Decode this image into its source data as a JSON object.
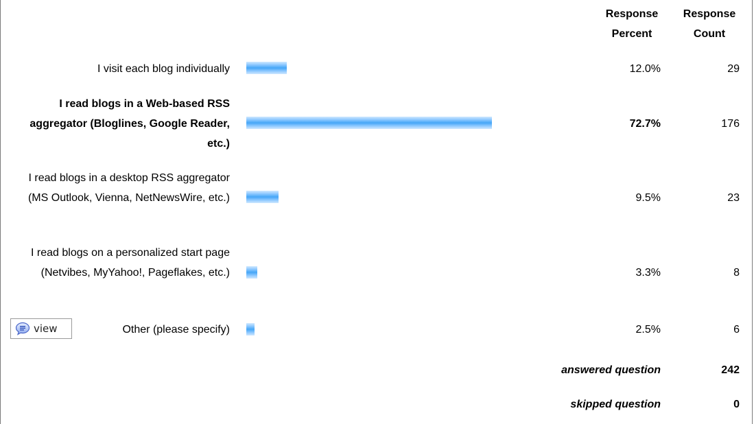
{
  "header": {
    "percent": "Response Percent",
    "count": "Response Count"
  },
  "rows": [
    {
      "label": "I visit each blog individually",
      "percent": "12.0%",
      "count": "29",
      "value": 12.0,
      "bold": false
    },
    {
      "label": "I read blogs in a Web-based RSS aggregator (Bloglines, Google Reader, etc.)",
      "percent": "72.7%",
      "count": "176",
      "value": 72.7,
      "bold": true
    },
    {
      "label": "I read blogs in a desktop RSS aggregator (MS Outlook, Vienna, NetNewsWire, etc.)",
      "percent": "9.5%",
      "count": "23",
      "value": 9.5,
      "bold": false
    },
    {
      "label": "I read blogs on a personalized start page (Netvibes, MyYahoo!, Pageflakes, etc.)",
      "percent": "3.3%",
      "count": "8",
      "value": 3.3,
      "bold": false
    },
    {
      "label": "Other (please specify)",
      "percent": "2.5%",
      "count": "6",
      "value": 2.5,
      "bold": false
    }
  ],
  "view_button": {
    "label": "view",
    "icon": "speech-bubble-icon"
  },
  "summary": {
    "answered_label": "answered question",
    "answered_value": "242",
    "skipped_label": "skipped question",
    "skipped_value": "0"
  },
  "colors": {
    "bar": "#45a6f7"
  }
}
